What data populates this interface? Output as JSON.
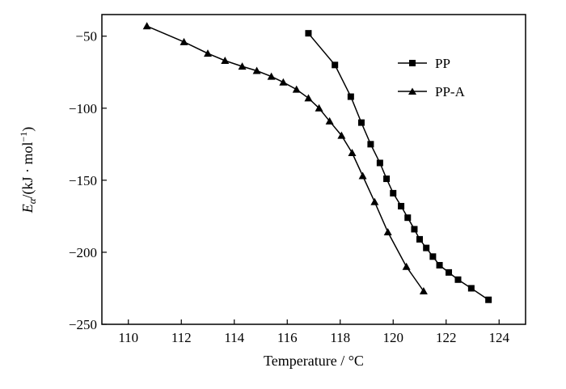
{
  "chart_data": {
    "type": "line",
    "title": "",
    "xlabel": "Temperature / °C",
    "ylabel_main": "E",
    "ylabel_sub": "α",
    "ylabel_unit_pre": "/(kJ · mol",
    "ylabel_unit_sup": "−1",
    "ylabel_unit_post": ")",
    "xlim": [
      109,
      125
    ],
    "ylim": [
      -250,
      -35
    ],
    "xticks": [
      110,
      112,
      114,
      116,
      118,
      120,
      122,
      124
    ],
    "yticks": [
      -50,
      -100,
      -150,
      -200,
      -250
    ],
    "xtick_labels": [
      "110",
      "112",
      "114",
      "116",
      "118",
      "120",
      "122",
      "124"
    ],
    "ytick_labels": [
      "−50",
      "−100",
      "−150",
      "−200",
      "−250"
    ],
    "grid": false,
    "legend_position": "top-right",
    "series": [
      {
        "name": "PP",
        "marker": "square",
        "x": [
          116.8,
          117.8,
          118.4,
          118.8,
          119.15,
          119.5,
          119.75,
          120.0,
          120.3,
          120.55,
          120.8,
          121.0,
          121.25,
          121.5,
          121.75,
          122.1,
          122.45,
          122.95,
          123.6
        ],
        "y": [
          -48,
          -70,
          -92,
          -110,
          -125,
          -138,
          -149,
          -159,
          -168,
          -176,
          -184,
          -191,
          -197,
          -203,
          -209,
          -214,
          -219,
          -225,
          -233
        ]
      },
      {
        "name": "PP-A",
        "marker": "triangle",
        "x": [
          110.7,
          112.1,
          113.0,
          113.65,
          114.3,
          114.85,
          115.4,
          115.85,
          116.35,
          116.8,
          117.2,
          117.6,
          118.05,
          118.45,
          118.85,
          119.3,
          119.8,
          120.5,
          121.15
        ],
        "y": [
          -43,
          -54,
          -62,
          -67,
          -71,
          -74,
          -78,
          -82,
          -87,
          -93,
          -100,
          -109,
          -119,
          -131,
          -147,
          -165,
          -186,
          -210,
          -227
        ]
      }
    ]
  }
}
